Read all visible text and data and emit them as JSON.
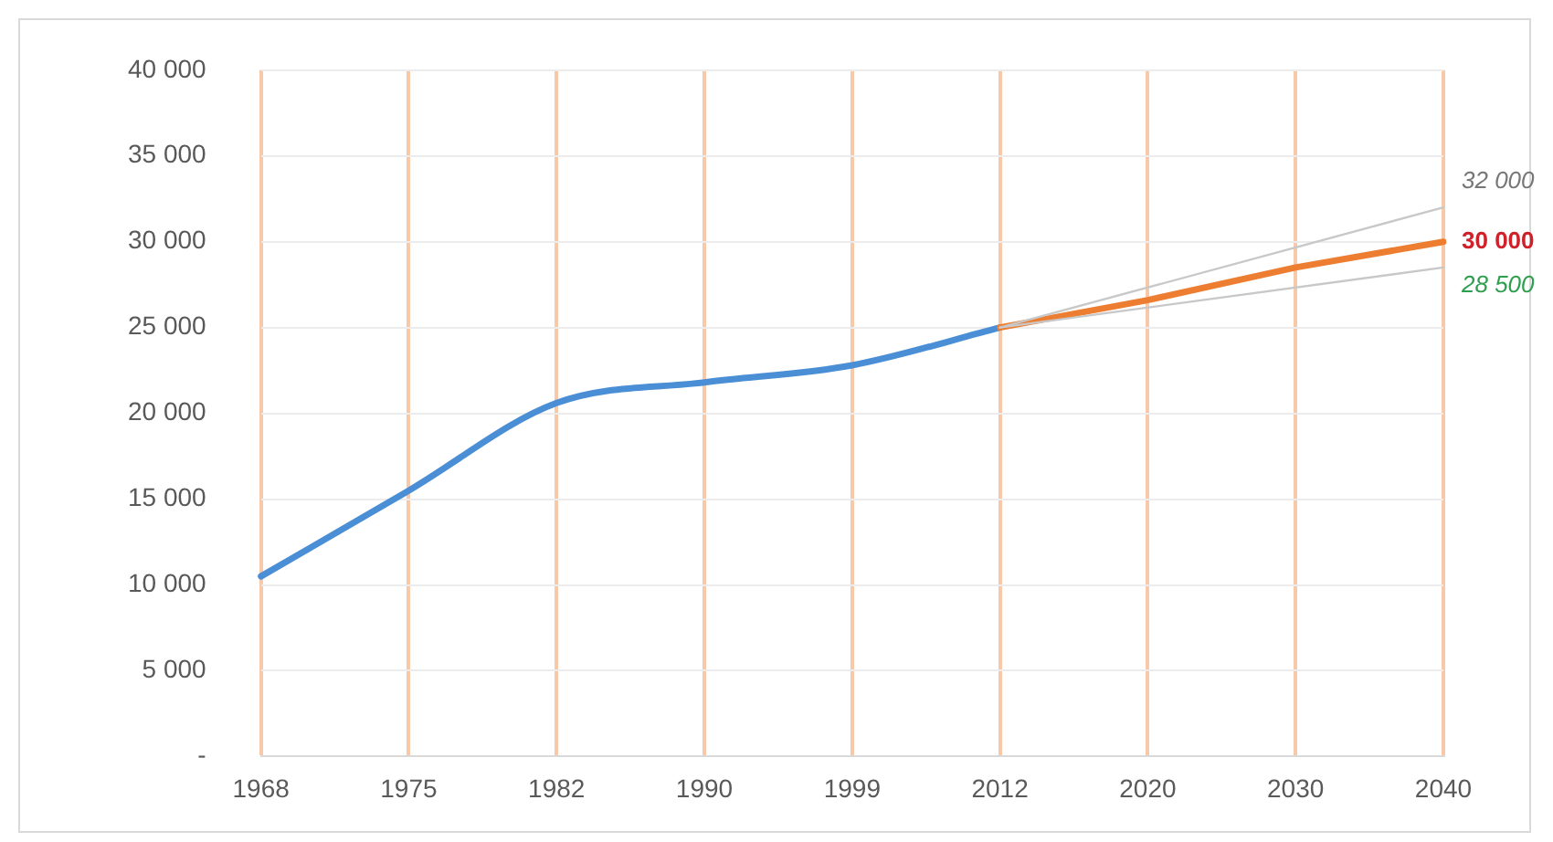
{
  "chart_data": {
    "type": "line",
    "categories": [
      "1968",
      "1975",
      "1982",
      "1990",
      "1999",
      "2012",
      "2020",
      "2030",
      "2040"
    ],
    "series": [
      {
        "color": "#4a8fd6",
        "values": [
          10500,
          15500,
          20600,
          21800,
          22800,
          25000,
          null,
          null,
          null
        ]
      },
      {
        "color": "#ed7d31",
        "values": [
          null,
          null,
          null,
          null,
          null,
          25000,
          26600,
          28500,
          30000
        ],
        "value_labels": [
          null,
          null,
          null,
          null,
          null,
          null,
          null,
          null,
          "30 000"
        ]
      },
      {
        "color": "#c8c8c8",
        "values": [
          null,
          null,
          null,
          null,
          null,
          25000,
          null,
          null,
          32000
        ],
        "value_labels": [
          null,
          null,
          null,
          null,
          null,
          null,
          null,
          null,
          "32 000"
        ]
      },
      {
        "color": "#c8c8c8",
        "values": [
          null,
          null,
          null,
          null,
          null,
          25000,
          null,
          null,
          28500
        ],
        "value_labels": [
          null,
          null,
          null,
          null,
          null,
          null,
          null,
          null,
          "28 500"
        ]
      }
    ],
    "ylim": [
      0,
      40000
    ],
    "yticks": [
      {
        "value": 0,
        "label": "-"
      },
      {
        "value": 5000,
        "label": "5 000"
      },
      {
        "value": 10000,
        "label": "10 000"
      },
      {
        "value": 15000,
        "label": "15 000"
      },
      {
        "value": 20000,
        "label": "20 000"
      },
      {
        "value": 25000,
        "label": "25 000"
      },
      {
        "value": 30000,
        "label": "30 000"
      },
      {
        "value": 35000,
        "label": "35 000"
      },
      {
        "value": 40000,
        "label": "40 000"
      }
    ],
    "grid": true,
    "marker": "none"
  }
}
